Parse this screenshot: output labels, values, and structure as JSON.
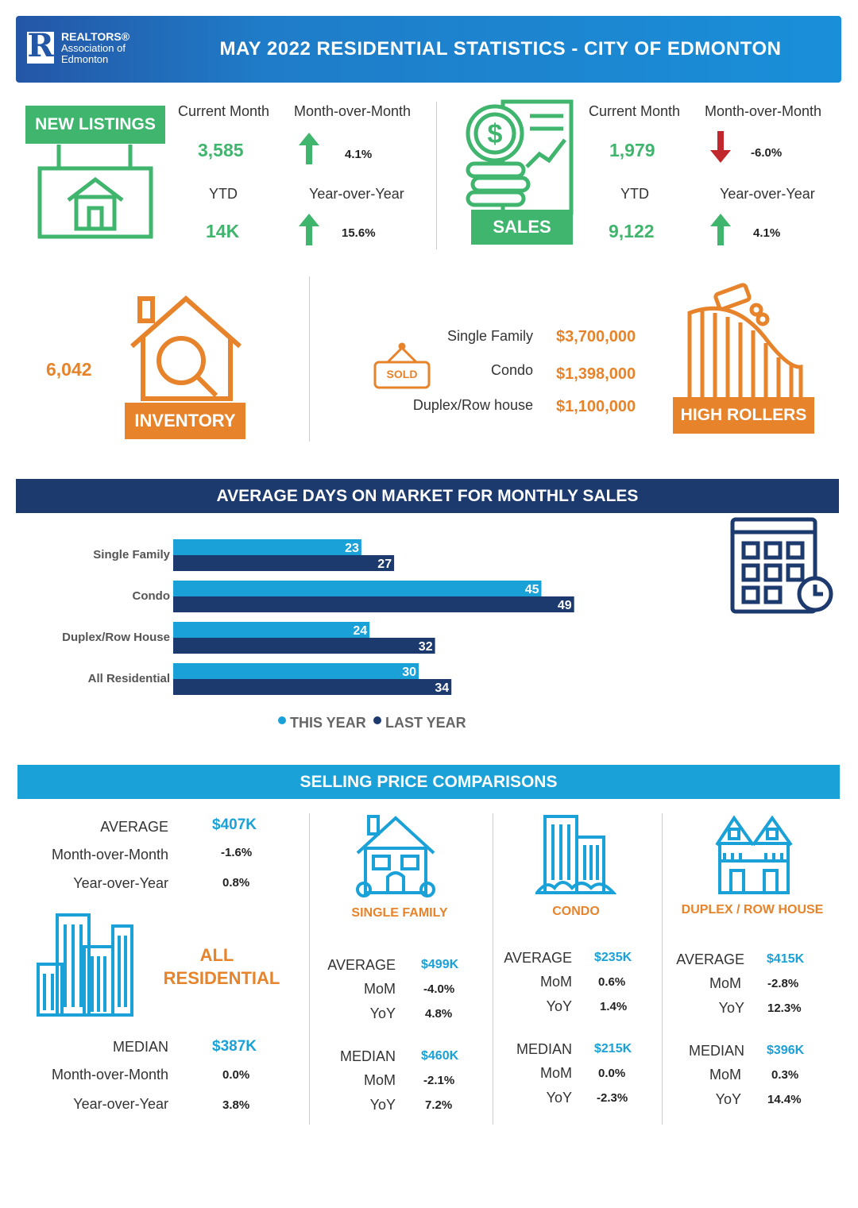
{
  "header": {
    "logo_line1": "REALTORS®",
    "logo_line2": "Association of",
    "logo_line3": "Edmonton",
    "title": "MAY 2022 RESIDENTIAL STATISTICS - CITY OF EDMONTON"
  },
  "new_listings": {
    "badge": "NEW  LISTINGS",
    "current_month_label": "Current Month",
    "current_month_value": "3,585",
    "mom_label": "Month-over-Month",
    "mom_value": "4.1%",
    "mom_direction": "up",
    "ytd_label": "YTD",
    "ytd_value": "14K",
    "yoy_label": "Year-over-Year",
    "yoy_value": "15.6%",
    "yoy_direction": "up"
  },
  "sales": {
    "badge": "SALES",
    "current_month_label": "Current Month",
    "current_month_value": "1,979",
    "mom_label": "Month-over-Month",
    "mom_value": "-6.0%",
    "mom_direction": "down",
    "ytd_label": "YTD",
    "ytd_value": "9,122",
    "yoy_label": "Year-over-Year",
    "yoy_value": "4.1%",
    "yoy_direction": "up"
  },
  "inventory": {
    "value": "6,042",
    "badge": "INVENTORY"
  },
  "high_rollers": {
    "sold_sign": "SOLD",
    "badge": "HIGH ROLLERS",
    "items": [
      {
        "label": "Single Family",
        "value": "$3,700,000"
      },
      {
        "label": "Condo",
        "value": "$1,398,000"
      },
      {
        "label": "Duplex/Row house",
        "value": "$1,100,000"
      }
    ]
  },
  "days_on_market": {
    "title": "AVERAGE DAYS ON MARKET FOR MONTHLY SALES",
    "legend_this_year": "THIS YEAR",
    "legend_last_year": "LAST YEAR"
  },
  "chart_data": {
    "type": "bar",
    "orientation": "horizontal",
    "title": "AVERAGE DAYS ON MARKET FOR MONTHLY SALES",
    "categories": [
      "Single Family",
      "Condo",
      "Duplex/Row House",
      "All Residential"
    ],
    "series": [
      {
        "name": "THIS YEAR",
        "color": "#1aa1d8",
        "values": [
          23,
          45,
          24,
          30
        ]
      },
      {
        "name": "LAST YEAR",
        "color": "#1d3a6e",
        "values": [
          27,
          49,
          32,
          34
        ]
      }
    ],
    "xlim": [
      0,
      50
    ],
    "grid": false,
    "legend": "bottom"
  },
  "selling_price": {
    "title": "SELLING PRICE COMPARISONS",
    "all_residential": {
      "name_line1": "ALL",
      "name_line2": "RESIDENTIAL",
      "average_label": "AVERAGE",
      "average_value": "$407K",
      "avg_mom_label": "Month-over-Month",
      "avg_mom_value": "-1.6%",
      "avg_yoy_label": "Year-over-Year",
      "avg_yoy_value": "0.8%",
      "median_label": "MEDIAN",
      "median_value": "$387K",
      "med_mom_label": "Month-over-Month",
      "med_mom_value": "0.0%",
      "med_yoy_label": "Year-over-Year",
      "med_yoy_value": "3.8%"
    },
    "types": [
      {
        "name": "SINGLE FAMILY",
        "average": "$499K",
        "avg_mom": "-4.0%",
        "avg_yoy": "4.8%",
        "median": "$460K",
        "med_mom": "-2.1%",
        "med_yoy": "7.2%"
      },
      {
        "name": "CONDO",
        "average": "$235K",
        "avg_mom": "0.6%",
        "avg_yoy": "1.4%",
        "median": "$215K",
        "med_mom": "0.0%",
        "med_yoy": "-2.3%"
      },
      {
        "name": "DUPLEX / ROW HOUSE",
        "average": "$415K",
        "avg_mom": "-2.8%",
        "avg_yoy": "12.3%",
        "median": "$396K",
        "med_mom": "0.3%",
        "med_yoy": "14.4%"
      }
    ],
    "labels": {
      "average": "AVERAGE",
      "median": "MEDIAN",
      "mom": "MoM",
      "yoy": "YoY"
    }
  },
  "colors": {
    "green": "#3fb56e",
    "orange": "#e6832b",
    "navy": "#1d3a6e",
    "sky": "#1aa1d8",
    "down_red": "#c0282d"
  }
}
